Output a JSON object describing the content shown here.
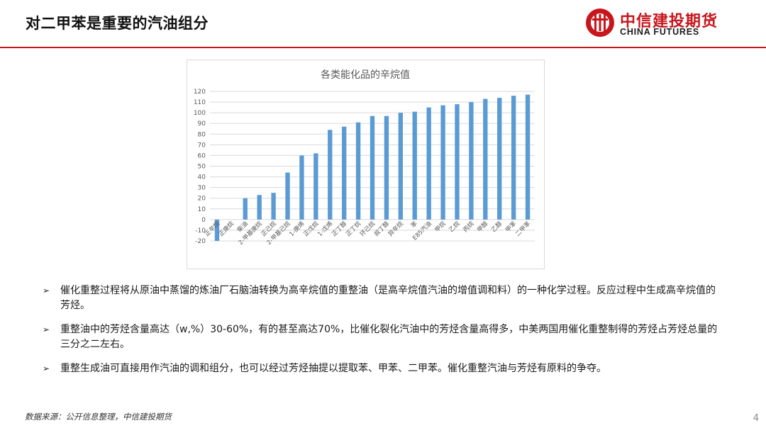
{
  "header": {
    "title": "对二甲苯是重要的汽油组分",
    "logo_cn": "中信建投期货",
    "logo_en": "CHINA FUTURES",
    "accent_color": "#c8161d"
  },
  "chart_data": {
    "type": "bar",
    "title": "各类能化品的辛烷值",
    "categories": [
      "正辛烷",
      "正庚烷",
      "柴油",
      "2-甲基庚烷",
      "正己烷",
      "2-甲基己烷",
      "1-庚烯",
      "正戊烷",
      "1-戊烯",
      "正丁醇",
      "正丁烷",
      "环己烷",
      "叔丁醇",
      "异辛烷",
      "苯",
      "E85汽油",
      "甲烷",
      "乙烷",
      "丙烷",
      "甲醇",
      "乙醇",
      "甲苯",
      "二甲苯"
    ],
    "values": [
      -20,
      0,
      20,
      23,
      25,
      44,
      60,
      62,
      84,
      87,
      91,
      97,
      97,
      100,
      101,
      105,
      107,
      108,
      110,
      113,
      114,
      116,
      117
    ],
    "ylim": [
      -20,
      120
    ],
    "yticks": [
      -20,
      -10,
      0,
      10,
      20,
      30,
      40,
      50,
      60,
      70,
      80,
      90,
      100,
      110,
      120
    ],
    "grid": true,
    "bar_color": "#5b9bd5"
  },
  "bullets": [
    "催化重整过程将从原油中蒸馏的炼油厂石脑油转换为高辛烷值的重整油（是高辛烷值汽油的增值调和料）的一种化学过程。反应过程中生成高辛烷值的芳烃。",
    "重整油中的芳烃含量高达（w,%）30-60%，有的甚至高达70%，比催化裂化汽油中的芳烃含量高得多，中美两国用催化重整制得的芳烃占芳烃总量的三分之二左右。",
    "重整生成油可直接用作汽油的调和组分，也可以经过芳烃抽提以提取苯、甲苯、二甲苯。催化重整汽油与芳烃有原料的争夺。"
  ],
  "bullet_marker": "➢",
  "footer": {
    "source": "数据来源：公开信息整理，中信建投期货",
    "page": "4"
  }
}
